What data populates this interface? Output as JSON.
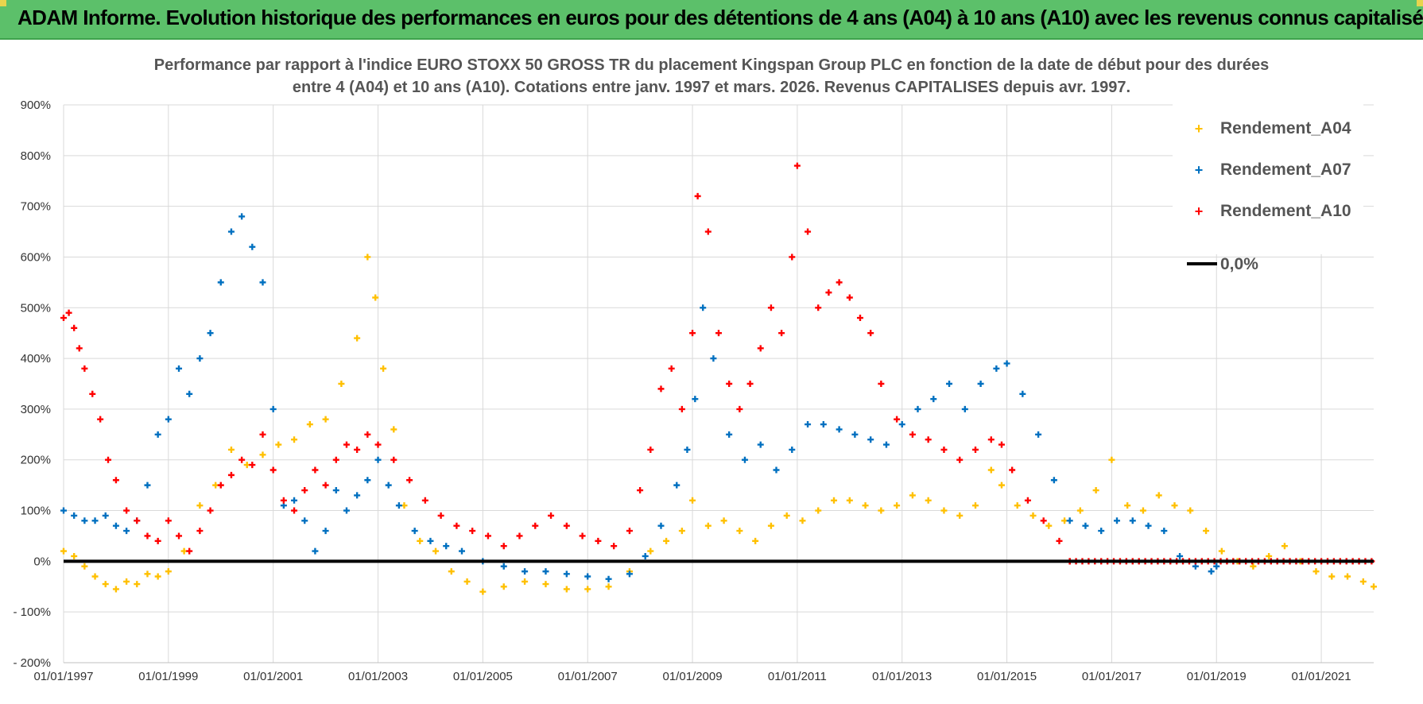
{
  "banner": {
    "title": "ADAM Informe. Evolution historique des performances en euros pour des détentions de 4 ans (A04) à 10 ans (A10) avec les revenus connus capitalisés"
  },
  "chart_data": {
    "type": "scatter",
    "title_line1": "Performance par rapport à l'indice EURO STOXX 50 GROSS TR  du placement Kingspan Group PLC en fonction de la date de début pour des durées",
    "title_line2": "entre 4 (A04) et 10 ans (A10).  Cotations entre janv. 1997 et mars. 2026. Revenus CAPITALISES depuis avr. 1997.",
    "xlabel": "",
    "ylabel": "",
    "x_range": [
      1997.0,
      2022.0
    ],
    "x_ticks": [
      {
        "value": 1997,
        "label": "01/01/1997"
      },
      {
        "value": 1999,
        "label": "01/01/1999"
      },
      {
        "value": 2001,
        "label": "01/01/2001"
      },
      {
        "value": 2003,
        "label": "01/01/2003"
      },
      {
        "value": 2005,
        "label": "01/01/2005"
      },
      {
        "value": 2007,
        "label": "01/01/2007"
      },
      {
        "value": 2009,
        "label": "01/01/2009"
      },
      {
        "value": 2011,
        "label": "01/01/2011"
      },
      {
        "value": 2013,
        "label": "01/01/2013"
      },
      {
        "value": 2015,
        "label": "01/01/2015"
      },
      {
        "value": 2017,
        "label": "01/01/2017"
      },
      {
        "value": 2019,
        "label": "01/01/2019"
      },
      {
        "value": 2021,
        "label": "01/01/2021"
      }
    ],
    "ylim": [
      -200,
      900
    ],
    "y_ticks": [
      {
        "value": 900,
        "label": "900%"
      },
      {
        "value": 800,
        "label": "800%"
      },
      {
        "value": 700,
        "label": "700%"
      },
      {
        "value": 600,
        "label": "600%"
      },
      {
        "value": 500,
        "label": "500%"
      },
      {
        "value": 400,
        "label": "400%"
      },
      {
        "value": 300,
        "label": "300%"
      },
      {
        "value": 200,
        "label": "200%"
      },
      {
        "value": 100,
        "label": "100%"
      },
      {
        "value": 0,
        "label": "0%"
      },
      {
        "value": -100,
        "label": "- 100%"
      },
      {
        "value": -200,
        "label": "- 200%"
      }
    ],
    "grid": true,
    "legend_position": "top-right",
    "reference_line": {
      "name": "0,0%",
      "value": 0,
      "color": "#000000"
    },
    "series": [
      {
        "name": "Rendement_A04",
        "color": "#ffc000",
        "x": [
          1997.0,
          1997.2,
          1997.4,
          1997.6,
          1997.8,
          1998.0,
          1998.2,
          1998.4,
          1998.6,
          1998.8,
          1999.0,
          1999.3,
          1999.6,
          1999.9,
          2000.2,
          2000.5,
          2000.8,
          2001.1,
          2001.4,
          2001.7,
          2002.0,
          2002.3,
          2002.6,
          2002.8,
          2002.95,
          2003.1,
          2003.3,
          2003.5,
          2003.8,
          2004.1,
          2004.4,
          2004.7,
          2005.0,
          2005.4,
          2005.8,
          2006.2,
          2006.6,
          2007.0,
          2007.4,
          2007.8,
          2008.2,
          2008.5,
          2008.8,
          2009.0,
          2009.3,
          2009.6,
          2009.9,
          2010.2,
          2010.5,
          2010.8,
          2011.1,
          2011.4,
          2011.7,
          2012.0,
          2012.3,
          2012.6,
          2012.9,
          2013.2,
          2013.5,
          2013.8,
          2014.1,
          2014.4,
          2014.7,
          2014.9,
          2015.2,
          2015.5,
          2015.8,
          2016.1,
          2016.4,
          2016.7,
          2017.0,
          2017.3,
          2017.6,
          2017.9,
          2018.2,
          2018.5,
          2018.8,
          2019.1,
          2019.4,
          2019.7,
          2020.0,
          2020.3,
          2020.6,
          2020.9,
          2021.2,
          2021.5,
          2021.8,
          2022.0
        ],
        "values": [
          20,
          10,
          -10,
          -30,
          -45,
          -55,
          -40,
          -45,
          -25,
          -30,
          -20,
          20,
          110,
          150,
          220,
          190,
          210,
          230,
          240,
          270,
          280,
          350,
          440,
          600,
          520,
          380,
          260,
          110,
          40,
          20,
          -20,
          -40,
          -60,
          -50,
          -40,
          -45,
          -55,
          -55,
          -50,
          -20,
          20,
          40,
          60,
          120,
          70,
          80,
          60,
          40,
          70,
          90,
          80,
          100,
          120,
          120,
          110,
          100,
          110,
          130,
          120,
          100,
          90,
          110,
          180,
          150,
          110,
          90,
          70,
          80,
          100,
          140,
          200,
          110,
          100,
          130,
          110,
          100,
          60,
          20,
          0,
          -10,
          10,
          30,
          0,
          -20,
          -30,
          -30,
          -40,
          -50
        ]
      },
      {
        "name": "Rendement_A07",
        "color": "#0070c0",
        "x": [
          1997.0,
          1997.2,
          1997.4,
          1997.6,
          1997.8,
          1998.0,
          1998.2,
          1998.4,
          1998.6,
          1998.8,
          1999.0,
          1999.2,
          1999.4,
          1999.6,
          1999.8,
          2000.0,
          2000.2,
          2000.4,
          2000.6,
          2000.8,
          2001.0,
          2001.2,
          2001.4,
          2001.6,
          2001.8,
          2002.0,
          2002.2,
          2002.4,
          2002.6,
          2002.8,
          2003.0,
          2003.2,
          2003.4,
          2003.7,
          2004.0,
          2004.3,
          2004.6,
          2005.0,
          2005.4,
          2005.8,
          2006.2,
          2006.6,
          2007.0,
          2007.4,
          2007.8,
          2008.1,
          2008.4,
          2008.7,
          2008.9,
          2009.05,
          2009.2,
          2009.4,
          2009.7,
          2010.0,
          2010.3,
          2010.6,
          2010.9,
          2011.2,
          2011.5,
          2011.8,
          2012.1,
          2012.4,
          2012.7,
          2013.0,
          2013.3,
          2013.6,
          2013.9,
          2014.2,
          2014.5,
          2014.8,
          2015.0,
          2015.3,
          2015.6,
          2015.9,
          2016.2,
          2016.5,
          2016.8,
          2017.1,
          2017.4,
          2017.7,
          2018.0,
          2018.3,
          2018.6,
          2018.9,
          2019.0
        ],
        "values": [
          100,
          90,
          80,
          80,
          90,
          70,
          60,
          80,
          150,
          250,
          280,
          380,
          330,
          400,
          450,
          550,
          650,
          680,
          620,
          550,
          300,
          110,
          120,
          80,
          20,
          60,
          140,
          100,
          130,
          160,
          200,
          150,
          110,
          60,
          40,
          30,
          20,
          0,
          -10,
          -20,
          -20,
          -25,
          -30,
          -35,
          -25,
          10,
          70,
          150,
          220,
          320,
          500,
          400,
          250,
          200,
          230,
          180,
          220,
          270,
          270,
          260,
          250,
          240,
          230,
          270,
          300,
          320,
          350,
          300,
          350,
          380,
          390,
          330,
          250,
          160,
          80,
          70,
          60,
          80,
          80,
          70,
          60,
          10,
          -10,
          -20,
          -10
        ]
      },
      {
        "name": "Rendement_A10",
        "color": "#ff0000",
        "x": [
          1997.0,
          1997.1,
          1997.2,
          1997.3,
          1997.4,
          1997.55,
          1997.7,
          1997.85,
          1998.0,
          1998.2,
          1998.4,
          1998.6,
          1998.8,
          1999.0,
          1999.2,
          1999.4,
          1999.6,
          1999.8,
          2000.0,
          2000.2,
          2000.4,
          2000.6,
          2000.8,
          2001.0,
          2001.2,
          2001.4,
          2001.6,
          2001.8,
          2002.0,
          2002.2,
          2002.4,
          2002.6,
          2002.8,
          2003.0,
          2003.3,
          2003.6,
          2003.9,
          2004.2,
          2004.5,
          2004.8,
          2005.1,
          2005.4,
          2005.7,
          2006.0,
          2006.3,
          2006.6,
          2006.9,
          2007.2,
          2007.5,
          2007.8,
          2008.0,
          2008.2,
          2008.4,
          2008.6,
          2008.8,
          2009.0,
          2009.1,
          2009.3,
          2009.5,
          2009.7,
          2009.9,
          2010.1,
          2010.3,
          2010.5,
          2010.7,
          2010.9,
          2011.0,
          2011.2,
          2011.4,
          2011.6,
          2011.8,
          2012.0,
          2012.2,
          2012.4,
          2012.6,
          2012.9,
          2013.2,
          2013.5,
          2013.8,
          2014.1,
          2014.4,
          2014.7,
          2014.9,
          2015.1,
          2015.4,
          2015.7,
          2016.0,
          2016.2
        ],
        "values": [
          480,
          490,
          460,
          420,
          380,
          330,
          280,
          200,
          160,
          100,
          80,
          50,
          40,
          80,
          50,
          20,
          60,
          100,
          150,
          170,
          200,
          190,
          250,
          180,
          120,
          100,
          140,
          180,
          150,
          200,
          230,
          220,
          250,
          230,
          200,
          160,
          120,
          90,
          70,
          60,
          50,
          30,
          50,
          70,
          90,
          70,
          50,
          40,
          30,
          60,
          140,
          220,
          340,
          380,
          300,
          450,
          720,
          650,
          450,
          350,
          300,
          350,
          420,
          500,
          450,
          600,
          780,
          650,
          500,
          530,
          550,
          520,
          480,
          450,
          350,
          280,
          250,
          240,
          220,
          200,
          220,
          240,
          230,
          180,
          120,
          80,
          40,
          0
        ]
      }
    ]
  }
}
